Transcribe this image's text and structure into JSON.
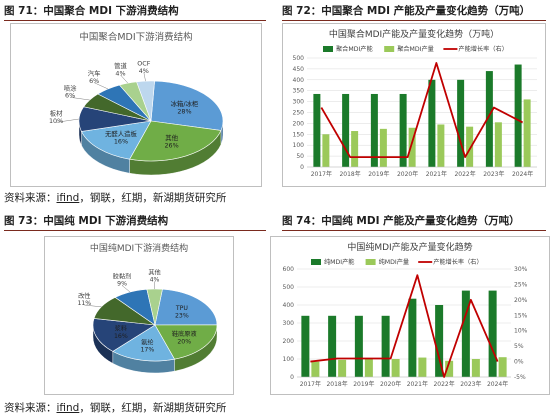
{
  "figures": {
    "fig71": "图 71：中国聚合 MDI 下游消费结构",
    "fig72": "图 72：中国聚合 MDI 产能及产量变化趋势（万吨）",
    "fig73": "图 73：中国纯 MDI 下游消费结构",
    "fig74": "图 74：中国纯 MDI 产能及产量变化趋势（万吨）"
  },
  "sources": [
    {
      "prefix": "资料来源：",
      "link": "ifind",
      "rest": "，钢联，红期，新湖期货研究所"
    },
    {
      "prefix": "资料来源：",
      "link": "ifind",
      "rest": "，钢联，红期，新湖期货研究所"
    }
  ],
  "colors": {
    "dark_green": "#1b7a2a",
    "light_green": "#9bc95a",
    "red_line": "#c00000",
    "rule": "#7a2a1e"
  },
  "chart_data": [
    {
      "type": "pie",
      "title": "中国聚合MDI下游消费结构",
      "slices": [
        {
          "label": "冰箱/冰柜",
          "value": 28,
          "pct": "28%",
          "color": "#5b9bd5"
        },
        {
          "label": "其他",
          "value": 26,
          "pct": "26%",
          "color": "#70ad47"
        },
        {
          "label": "无醛人造板",
          "value": 16,
          "pct": "16%",
          "color": "#6fb3e0"
        },
        {
          "label": "板材",
          "value": 10,
          "pct": "10%",
          "color": "#264478"
        },
        {
          "label": "喷涂",
          "value": 6,
          "pct": "6%",
          "color": "#43682b"
        },
        {
          "label": "汽车",
          "value": 6,
          "pct": "6%",
          "color": "#2e75b6"
        },
        {
          "label": "管道",
          "value": 4,
          "pct": "4%",
          "color": "#a9d18e"
        },
        {
          "label": "OCF",
          "value": 4,
          "pct": "4%",
          "color": "#bdd7ee"
        }
      ]
    },
    {
      "type": "bar",
      "title": "中国聚合MDI产能及产量变化趋势（万吨）",
      "categories": [
        "2017年",
        "2018年",
        "2019年",
        "2020年",
        "2021年",
        "2022年",
        "2023年",
        "2024年"
      ],
      "series": [
        {
          "name": "聚合MDI产能",
          "kind": "bar",
          "axis": "left",
          "color": "#1b7a2a",
          "values": [
            335,
            335,
            335,
            335,
            400,
            400,
            440,
            470
          ]
        },
        {
          "name": "聚合MDI产量",
          "kind": "bar",
          "axis": "left",
          "color": "#9bc95a",
          "values": [
            150,
            165,
            175,
            180,
            195,
            185,
            205,
            310
          ]
        },
        {
          "name": "产能增长率（右）",
          "kind": "line",
          "axis": "right",
          "color": "#c00000",
          "values": [
            10,
            0,
            0,
            0,
            19,
            0,
            10,
            7
          ]
        }
      ],
      "ylim_left": [
        0,
        500
      ],
      "yticks_left": [
        "0",
        "50",
        "100",
        "150",
        "200",
        "250",
        "300",
        "350",
        "400",
        "450",
        "500"
      ],
      "ylim_right": [
        -2,
        20
      ],
      "yticks_right": []
    },
    {
      "type": "pie",
      "title": "中国纯MDI下游消费结构",
      "slices": [
        {
          "label": "TPU",
          "value": 23,
          "pct": "23%",
          "color": "#5b9bd5"
        },
        {
          "label": "鞋底原液",
          "value": 20,
          "pct": "20%",
          "color": "#70ad47"
        },
        {
          "label": "氨纶",
          "value": 17,
          "pct": "17%",
          "color": "#6fb3e0"
        },
        {
          "label": "浆料",
          "value": 16,
          "pct": "16%",
          "color": "#264478"
        },
        {
          "label": "改性",
          "value": 11,
          "pct": "11%",
          "color": "#43682b"
        },
        {
          "label": "胶黏剂",
          "value": 9,
          "pct": "9%",
          "color": "#2e75b6"
        },
        {
          "label": "其他",
          "value": 4,
          "pct": "4%",
          "color": "#a9d18e"
        }
      ]
    },
    {
      "type": "bar",
      "title": "中国纯MDI产能及产量变化趋势",
      "categories": [
        "2017年",
        "2018年",
        "2019年",
        "2020年",
        "2021年",
        "2022年",
        "2023年",
        "2024年"
      ],
      "series": [
        {
          "name": "纯MDI产能",
          "kind": "bar",
          "axis": "left",
          "color": "#1b7a2a",
          "values": [
            340,
            340,
            340,
            340,
            435,
            400,
            480,
            480
          ]
        },
        {
          "name": "纯MDI产量",
          "kind": "bar",
          "axis": "left",
          "color": "#9bc95a",
          "values": [
            85,
            95,
            100,
            100,
            108,
            90,
            100,
            110
          ]
        },
        {
          "name": "产能增长率（右）",
          "kind": "line",
          "axis": "right",
          "color": "#c00000",
          "values": [
            0,
            1,
            1,
            1,
            28,
            -5,
            20,
            0
          ]
        }
      ],
      "ylim_left": [
        0,
        600
      ],
      "yticks_left": [
        "0",
        "100",
        "200",
        "300",
        "400",
        "500",
        "600"
      ],
      "ylim_right": [
        -5,
        30
      ],
      "yticks_right": [
        "-5%",
        "0%",
        "5%",
        "10%",
        "15%",
        "20%",
        "25%",
        "30%"
      ]
    }
  ]
}
